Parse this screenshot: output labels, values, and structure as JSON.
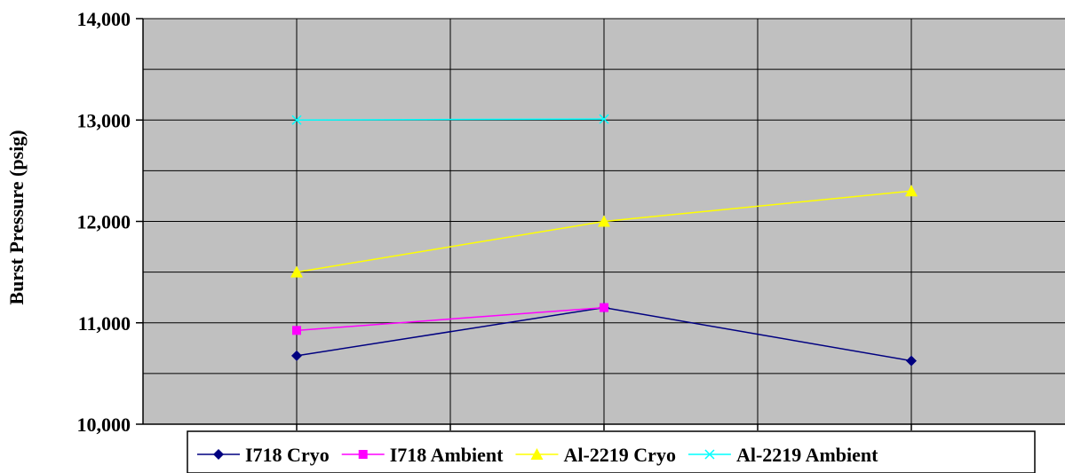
{
  "chart_data": {
    "type": "line",
    "title": "",
    "xlabel": "",
    "ylabel": "Burst Pressure (psig)",
    "ylim": [
      10000,
      14000
    ],
    "x_positions": 4,
    "yticks": [
      "10,000",
      "11,000",
      "12,000",
      "13,000",
      "14,000"
    ],
    "grid": true,
    "legend_position": "bottom",
    "plot_background": "#c0c0c0",
    "series": [
      {
        "name": "I718 Cryo",
        "color": "#000080",
        "marker": "diamond",
        "x": [
          1,
          2,
          3
        ],
        "values": [
          10675,
          11150,
          10625
        ]
      },
      {
        "name": "I718 Ambient",
        "color": "#ff00ff",
        "marker": "square",
        "x": [
          1,
          2
        ],
        "values": [
          10925,
          11150
        ]
      },
      {
        "name": "Al-2219 Cryo",
        "color": "#ffff00",
        "marker": "triangle",
        "x": [
          1,
          2,
          3
        ],
        "values": [
          11500,
          12000,
          12300
        ]
      },
      {
        "name": "Al-2219 Ambient",
        "color": "#00ffff",
        "marker": "x",
        "x": [
          1,
          2
        ],
        "values": [
          13000,
          13010
        ]
      }
    ]
  }
}
